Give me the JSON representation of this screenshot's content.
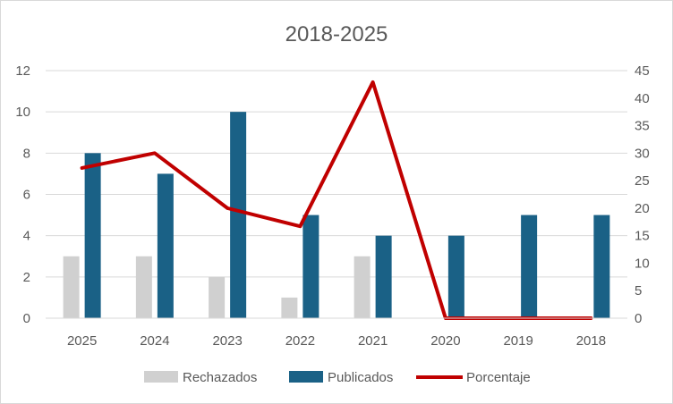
{
  "chart_data": {
    "type": "bar",
    "title": "2018-2025",
    "categories": [
      "2025",
      "2024",
      "2023",
      "2022",
      "2021",
      "2020",
      "2019",
      "2018"
    ],
    "series": [
      {
        "name": "Rechazados",
        "type": "bar",
        "axis": "left",
        "color": "#d0d0d0",
        "values": [
          3,
          3,
          2,
          1,
          3,
          0,
          0,
          0
        ]
      },
      {
        "name": "Publicados",
        "type": "bar",
        "axis": "left",
        "color": "#1a6186",
        "values": [
          8,
          7,
          10,
          5,
          4,
          4,
          5,
          5
        ]
      },
      {
        "name": "Porcentaje",
        "type": "line",
        "axis": "right",
        "color": "#c00000",
        "values": [
          27.3,
          30,
          20,
          16.7,
          42.9,
          0,
          0,
          0
        ]
      }
    ],
    "y_left": {
      "min": 0,
      "max": 12,
      "step": 2,
      "ticks": [
        "0",
        "2",
        "4",
        "6",
        "8",
        "10",
        "12"
      ]
    },
    "y_right": {
      "min": 0,
      "max": 45,
      "step": 5,
      "ticks": [
        "0",
        "5",
        "10",
        "15",
        "20",
        "25",
        "30",
        "35",
        "40",
        "45"
      ]
    },
    "grid": true,
    "legend": "bottom"
  }
}
